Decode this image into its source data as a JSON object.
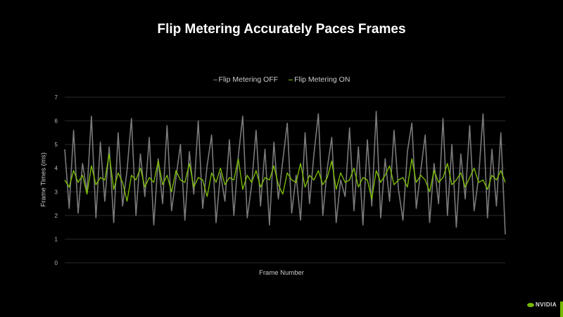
{
  "chart_data": {
    "type": "line",
    "title": "Flip Metering Accurately Paces Frames",
    "xlabel": "Frame Number",
    "ylabel": "Frame Times (ms)",
    "ylim": [
      0,
      7
    ],
    "yticks": [
      "0",
      "1",
      "2",
      "3",
      "4",
      "5",
      "6",
      "7"
    ],
    "grid": true,
    "legend_position": "top",
    "series": [
      {
        "name": "Flip Metering OFF",
        "color": "#7a7a7a",
        "values": [
          4.8,
          2.3,
          5.6,
          2.1,
          4.2,
          3.0,
          6.2,
          1.9,
          5.1,
          2.6,
          4.9,
          1.7,
          5.5,
          2.4,
          3.9,
          6.1,
          2.0,
          4.6,
          2.8,
          5.3,
          1.6,
          4.4,
          2.5,
          5.8,
          2.2,
          3.6,
          5.0,
          1.8,
          4.7,
          2.9,
          6.0,
          2.3,
          4.1,
          5.4,
          1.7,
          3.8,
          2.6,
          5.2,
          2.0,
          4.5,
          6.2,
          1.9,
          3.3,
          5.6,
          2.4,
          4.8,
          1.6,
          5.1,
          2.7,
          4.3,
          5.9,
          2.1,
          3.7,
          1.8,
          5.5,
          2.5,
          4.6,
          6.3,
          2.0,
          4.0,
          5.3,
          1.7,
          3.5,
          2.8,
          5.7,
          2.2,
          4.9,
          1.6,
          5.2,
          2.4,
          6.4,
          1.9,
          4.4,
          2.6,
          5.6,
          3.1,
          1.8,
          4.7,
          5.9,
          2.3,
          3.9,
          5.4,
          1.7,
          4.2,
          2.5,
          6.1,
          2.0,
          5.0,
          1.5,
          4.6,
          2.7,
          5.8,
          2.2,
          3.6,
          6.3,
          1.9,
          4.8,
          2.4,
          5.5,
          1.2
        ]
      },
      {
        "name": "Flip Metering ON",
        "color": "#7fc400",
        "values": [
          3.5,
          3.2,
          3.9,
          3.4,
          3.7,
          2.9,
          4.1,
          3.3,
          3.6,
          3.5,
          4.6,
          3.1,
          3.8,
          3.4,
          2.6,
          3.7,
          3.5,
          4.0,
          3.2,
          3.6,
          3.4,
          4.3,
          3.3,
          3.7,
          3.0,
          3.9,
          3.5,
          3.4,
          4.2,
          3.2,
          3.6,
          3.5,
          2.8,
          3.8,
          3.4,
          4.0,
          3.3,
          3.6,
          3.5,
          4.4,
          3.1,
          3.7,
          3.4,
          3.9,
          3.2,
          3.6,
          3.5,
          4.1,
          3.3,
          2.9,
          3.8,
          3.5,
          3.4,
          4.2,
          3.2,
          3.7,
          3.5,
          3.9,
          3.3,
          3.6,
          4.3,
          3.1,
          3.8,
          3.4,
          3.5,
          4.0,
          3.2,
          3.6,
          3.5,
          2.7,
          3.9,
          3.4,
          3.7,
          4.1,
          3.3,
          3.5,
          3.6,
          3.2,
          4.4,
          3.4,
          3.7,
          3.5,
          3.0,
          3.9,
          3.4,
          3.6,
          4.2,
          3.3,
          3.5,
          3.8,
          3.2,
          3.6,
          4.0,
          3.4,
          3.5,
          3.1,
          3.7,
          3.5,
          3.9,
          3.4
        ]
      }
    ]
  },
  "branding": {
    "logo_text": "NVIDIA",
    "accent": "#76b900"
  }
}
